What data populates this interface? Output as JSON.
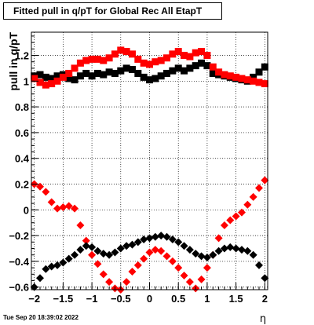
{
  "title": "Fitted pull in q/pT for Global Rec All EtapT",
  "timestamp": "Tue Sep 20 18:39:02 2022",
  "chart_data": {
    "type": "scatter",
    "title": "Fitted pull in q/pT for Global Rec All EtapT",
    "xlabel": "η",
    "ylabel": "pull in q/pT",
    "xlim": [
      -2.05,
      2.05
    ],
    "ylim": [
      -0.62,
      1.38
    ],
    "grid": true,
    "x_ticks": [
      -2,
      -1.5,
      -1,
      -0.5,
      0,
      0.5,
      1,
      1.5,
      2
    ],
    "x_tick_labels": [
      "−2",
      "−1.5",
      "−1",
      "−0.5",
      "0",
      "0.5",
      "1",
      "1.5",
      "2"
    ],
    "y_ticks": [
      -0.6,
      -0.4,
      -0.2,
      0,
      0.2,
      0.4,
      0.6,
      0.8,
      1,
      1.2
    ],
    "y_tick_labels": [
      "−0.6",
      "−0.4",
      "−0.2",
      "0",
      "0.2",
      "0.4",
      "0.6",
      "0.8",
      "1",
      "1.2"
    ],
    "series": [
      {
        "color": "#000000",
        "marker": "square",
        "x": [
          -2.0,
          -1.9,
          -1.8,
          -1.7,
          -1.6,
          -1.5,
          -1.4,
          -1.3,
          -1.2,
          -1.1,
          -1.0,
          -0.9,
          -0.8,
          -0.7,
          -0.6,
          -0.5,
          -0.4,
          -0.3,
          -0.2,
          -0.1,
          0.0,
          0.1,
          0.2,
          0.3,
          0.4,
          0.5,
          0.6,
          0.7,
          0.8,
          0.9,
          1.0,
          1.1,
          1.2,
          1.3,
          1.4,
          1.5,
          1.6,
          1.7,
          1.8,
          1.9,
          2.0
        ],
        "y": [
          1.04,
          1.05,
          1.03,
          1.02,
          1.04,
          1.05,
          1.02,
          1.01,
          1.04,
          1.06,
          1.04,
          1.06,
          1.05,
          1.07,
          1.06,
          1.08,
          1.1,
          1.09,
          1.06,
          1.03,
          1.01,
          1.02,
          1.04,
          1.06,
          1.08,
          1.1,
          1.08,
          1.1,
          1.12,
          1.14,
          1.12,
          1.06,
          1.05,
          1.04,
          1.03,
          1.02,
          1.01,
          1.0,
          1.03,
          1.07,
          1.11
        ]
      },
      {
        "color": "#ff0000",
        "marker": "square",
        "x": [
          -2.0,
          -1.9,
          -1.8,
          -1.7,
          -1.6,
          -1.5,
          -1.4,
          -1.3,
          -1.2,
          -1.1,
          -1.0,
          -0.9,
          -0.8,
          -0.7,
          -0.6,
          -0.5,
          -0.4,
          -0.3,
          -0.2,
          -0.1,
          0.0,
          0.1,
          0.2,
          0.3,
          0.4,
          0.5,
          0.6,
          0.7,
          0.8,
          0.9,
          1.0,
          1.1,
          1.2,
          1.3,
          1.4,
          1.5,
          1.6,
          1.7,
          1.8,
          1.9,
          2.0
        ],
        "y": [
          1.02,
          0.99,
          0.97,
          0.98,
          1.0,
          1.03,
          1.06,
          1.1,
          1.14,
          1.16,
          1.17,
          1.17,
          1.16,
          1.18,
          1.21,
          1.24,
          1.23,
          1.21,
          1.17,
          1.14,
          1.13,
          1.15,
          1.16,
          1.18,
          1.21,
          1.23,
          1.2,
          1.19,
          1.22,
          1.23,
          1.2,
          1.11,
          1.07,
          1.05,
          1.04,
          1.03,
          1.02,
          1.01,
          1.0,
          0.99,
          0.98
        ]
      },
      {
        "color": "#ff0000",
        "marker": "diamond",
        "x": [
          -2.0,
          -1.9,
          -1.8,
          -1.7,
          -1.6,
          -1.5,
          -1.4,
          -1.3,
          -1.2,
          -1.1,
          -1.0,
          -0.9,
          -0.8,
          -0.7,
          -0.6,
          -0.5,
          -0.4,
          -0.3,
          -0.2,
          -0.1,
          0.0,
          0.1,
          0.2,
          0.3,
          0.4,
          0.5,
          0.6,
          0.7,
          0.8,
          0.9,
          1.0,
          1.1,
          1.2,
          1.3,
          1.4,
          1.5,
          1.6,
          1.7,
          1.8,
          1.9,
          2.0
        ],
        "y": [
          0.2,
          0.18,
          0.14,
          0.06,
          0.01,
          0.02,
          0.03,
          0.01,
          -0.12,
          -0.24,
          -0.35,
          -0.42,
          -0.5,
          -0.56,
          -0.61,
          -0.62,
          -0.56,
          -0.48,
          -0.43,
          -0.38,
          -0.33,
          -0.31,
          -0.32,
          -0.36,
          -0.4,
          -0.45,
          -0.51,
          -0.56,
          -0.61,
          -0.54,
          -0.45,
          -0.35,
          -0.22,
          -0.12,
          -0.08,
          -0.05,
          -0.02,
          0.04,
          0.1,
          0.17,
          0.23
        ]
      },
      {
        "color": "#000000",
        "marker": "diamond",
        "x": [
          -2.0,
          -1.9,
          -1.8,
          -1.7,
          -1.6,
          -1.5,
          -1.4,
          -1.3,
          -1.2,
          -1.1,
          -1.0,
          -0.9,
          -0.8,
          -0.7,
          -0.6,
          -0.5,
          -0.4,
          -0.3,
          -0.2,
          -0.1,
          0.0,
          0.1,
          0.2,
          0.3,
          0.4,
          0.5,
          0.6,
          0.7,
          0.8,
          0.9,
          1.0,
          1.1,
          1.2,
          1.3,
          1.4,
          1.5,
          1.6,
          1.7,
          1.8,
          1.9,
          2.0
        ],
        "y": [
          -0.6,
          -0.53,
          -0.46,
          -0.44,
          -0.43,
          -0.41,
          -0.38,
          -0.35,
          -0.31,
          -0.28,
          -0.29,
          -0.32,
          -0.34,
          -0.35,
          -0.33,
          -0.3,
          -0.28,
          -0.27,
          -0.25,
          -0.23,
          -0.22,
          -0.21,
          -0.2,
          -0.21,
          -0.23,
          -0.25,
          -0.28,
          -0.31,
          -0.34,
          -0.36,
          -0.37,
          -0.35,
          -0.32,
          -0.3,
          -0.29,
          -0.3,
          -0.31,
          -0.32,
          -0.35,
          -0.43,
          -0.53
        ]
      }
    ]
  }
}
